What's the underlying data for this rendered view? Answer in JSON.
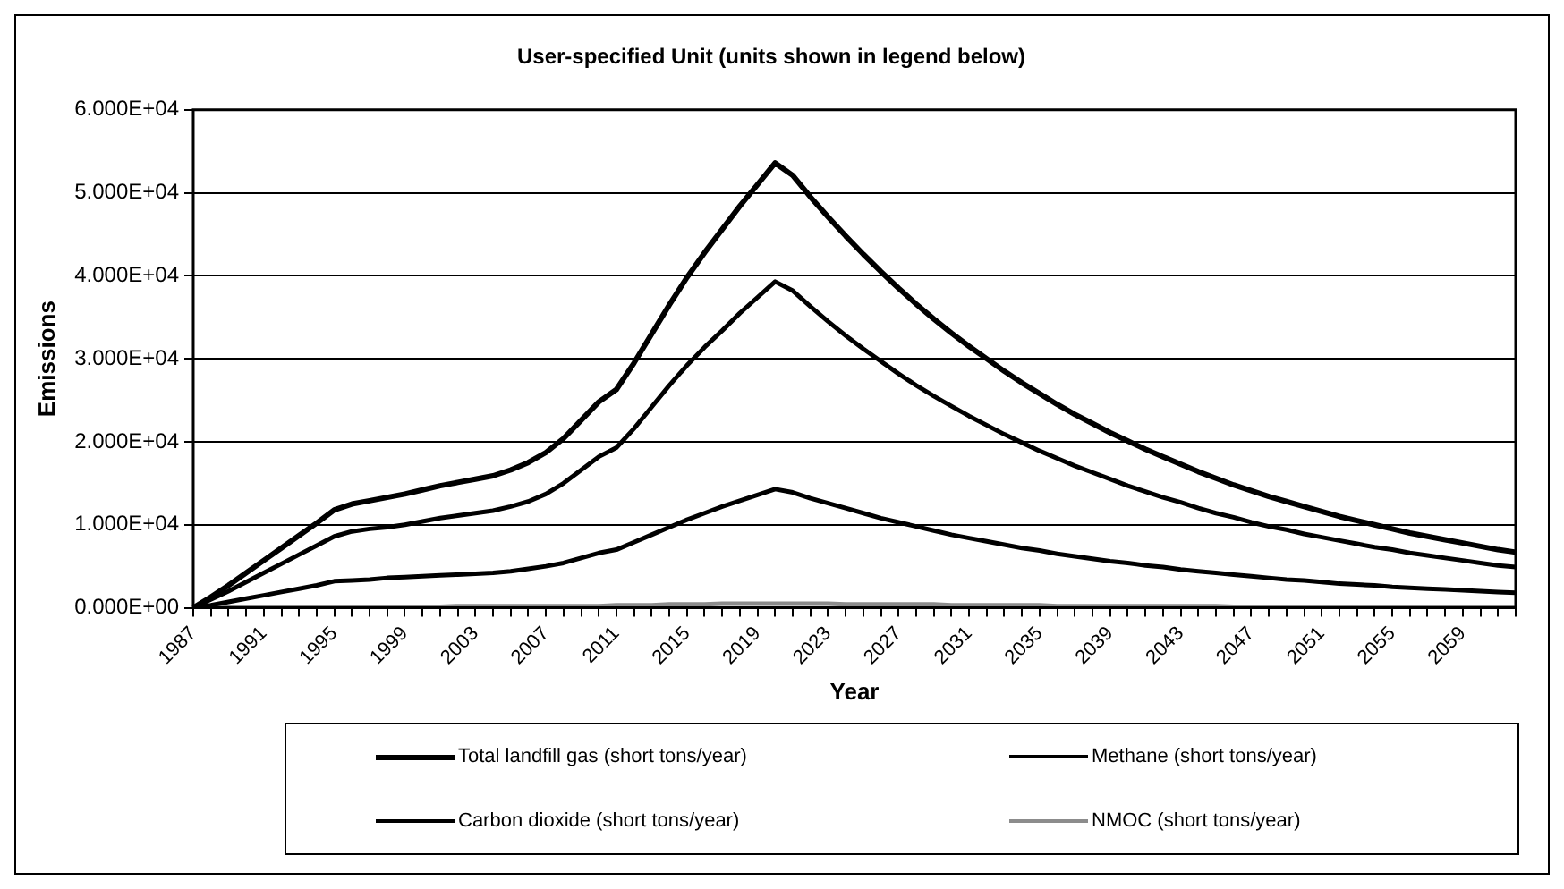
{
  "chart_data": {
    "type": "line",
    "title": "User-specified Unit (units shown in legend below)",
    "xlabel": "Year",
    "ylabel": "Emissions",
    "categories": [
      "1987",
      null,
      null,
      null,
      "1991",
      null,
      null,
      null,
      "1995",
      null,
      null,
      null,
      "1999",
      null,
      null,
      null,
      "2003",
      null,
      null,
      null,
      "2007",
      null,
      null,
      null,
      "2011",
      null,
      null,
      null,
      "2015",
      null,
      null,
      null,
      "2019",
      null,
      null,
      null,
      "2023",
      null,
      null,
      null,
      "2027",
      null,
      null,
      null,
      "2031",
      null,
      null,
      null,
      "2035",
      null,
      null,
      null,
      "2039",
      null,
      null,
      null,
      "2043",
      null,
      null,
      null,
      "2047",
      null,
      null,
      null,
      "2051",
      null,
      null,
      null,
      "2055",
      null,
      null,
      null,
      "2059",
      null,
      null,
      null
    ],
    "series": [
      {
        "name": "Total landfill gas (short tons/year)",
        "color": "#000000",
        "values": [
          0,
          1300,
          2700,
          4200,
          5700,
          7200,
          8700,
          10200,
          11800,
          12500,
          12900,
          13300,
          13700,
          14200,
          14700,
          15100,
          15500,
          15900,
          16600,
          17500,
          18700,
          20400,
          22600,
          24800,
          26300,
          29500,
          33000,
          36500,
          39800,
          42800,
          45600,
          48400,
          51000,
          53600,
          52100,
          49500,
          47100,
          44800,
          42600,
          40500,
          38500,
          36600,
          34800,
          33100,
          31500,
          30000,
          28500,
          27100,
          25800,
          24500,
          23300,
          22200,
          21100,
          20100,
          19100,
          18200,
          17300,
          16400,
          15600,
          14800,
          14100,
          13400,
          12800,
          12200,
          11600,
          11000,
          10500,
          10000,
          9500,
          9000,
          8600,
          8200,
          7800,
          7400,
          7000,
          6700
        ]
      },
      {
        "name": "Methane (short tons/year)",
        "color": "#000000",
        "values": [
          0,
          300,
          700,
          1100,
          1500,
          1900,
          2300,
          2700,
          3200,
          3300,
          3400,
          3600,
          3700,
          3800,
          3900,
          4000,
          4100,
          4200,
          4400,
          4700,
          5000,
          5400,
          6000,
          6600,
          7000,
          7900,
          8800,
          9700,
          10600,
          11400,
          12200,
          12900,
          13600,
          14300,
          13900,
          13200,
          12600,
          12000,
          11400,
          10800,
          10300,
          9800,
          9300,
          8800,
          8400,
          8000,
          7600,
          7200,
          6900,
          6500,
          6200,
          5900,
          5600,
          5400,
          5100,
          4900,
          4600,
          4400,
          4200,
          4000,
          3800,
          3600,
          3400,
          3300,
          3100,
          2900,
          2800,
          2700,
          2500,
          2400,
          2300,
          2200,
          2100,
          2000,
          1900,
          1800
        ]
      },
      {
        "name": "Carbon dioxide (short tons/year)",
        "color": "#000000",
        "values": [
          0,
          1000,
          2000,
          3100,
          4200,
          5300,
          6400,
          7500,
          8600,
          9200,
          9500,
          9700,
          10000,
          10400,
          10800,
          11100,
          11400,
          11700,
          12200,
          12800,
          13700,
          15000,
          16600,
          18200,
          19300,
          21600,
          24200,
          26800,
          29200,
          31400,
          33400,
          35500,
          37400,
          39300,
          38200,
          36300,
          34500,
          32800,
          31200,
          29700,
          28200,
          26800,
          25500,
          24300,
          23100,
          22000,
          20900,
          19900,
          18900,
          18000,
          17100,
          16300,
          15500,
          14700,
          14000,
          13300,
          12700,
          12000,
          11400,
          10900,
          10300,
          9800,
          9400,
          8900,
          8500,
          8100,
          7700,
          7300,
          7000,
          6600,
          6300,
          6000,
          5700,
          5400,
          5100,
          4900
        ]
      },
      {
        "name": "NMOC (short tons/year)",
        "color": "#8c8c8c",
        "values": [
          0,
          0,
          0,
          0,
          100,
          100,
          100,
          100,
          100,
          100,
          100,
          100,
          100,
          100,
          100,
          200,
          200,
          200,
          200,
          200,
          200,
          200,
          200,
          200,
          300,
          300,
          300,
          400,
          400,
          400,
          500,
          500,
          500,
          500,
          500,
          500,
          500,
          400,
          400,
          400,
          400,
          400,
          400,
          300,
          300,
          300,
          300,
          300,
          300,
          200,
          200,
          200,
          200,
          200,
          200,
          200,
          200,
          200,
          200,
          100,
          100,
          100,
          100,
          100,
          100,
          100,
          100,
          100,
          100,
          100,
          100,
          100,
          100,
          100,
          100,
          100
        ]
      }
    ],
    "ylim": [
      0,
      60000
    ],
    "yticks": [
      {
        "value": 0,
        "label": "0.000E+00"
      },
      {
        "value": 10000,
        "label": "1.000E+04"
      },
      {
        "value": 20000,
        "label": "2.000E+04"
      },
      {
        "value": 30000,
        "label": "3.000E+04"
      },
      {
        "value": 40000,
        "label": "4.000E+04"
      },
      {
        "value": 50000,
        "label": "5.000E+04"
      },
      {
        "value": 60000,
        "label": "6.000E+04"
      }
    ],
    "grid": "y",
    "legend": "bottom",
    "marker": "none",
    "line_style": "solid"
  }
}
